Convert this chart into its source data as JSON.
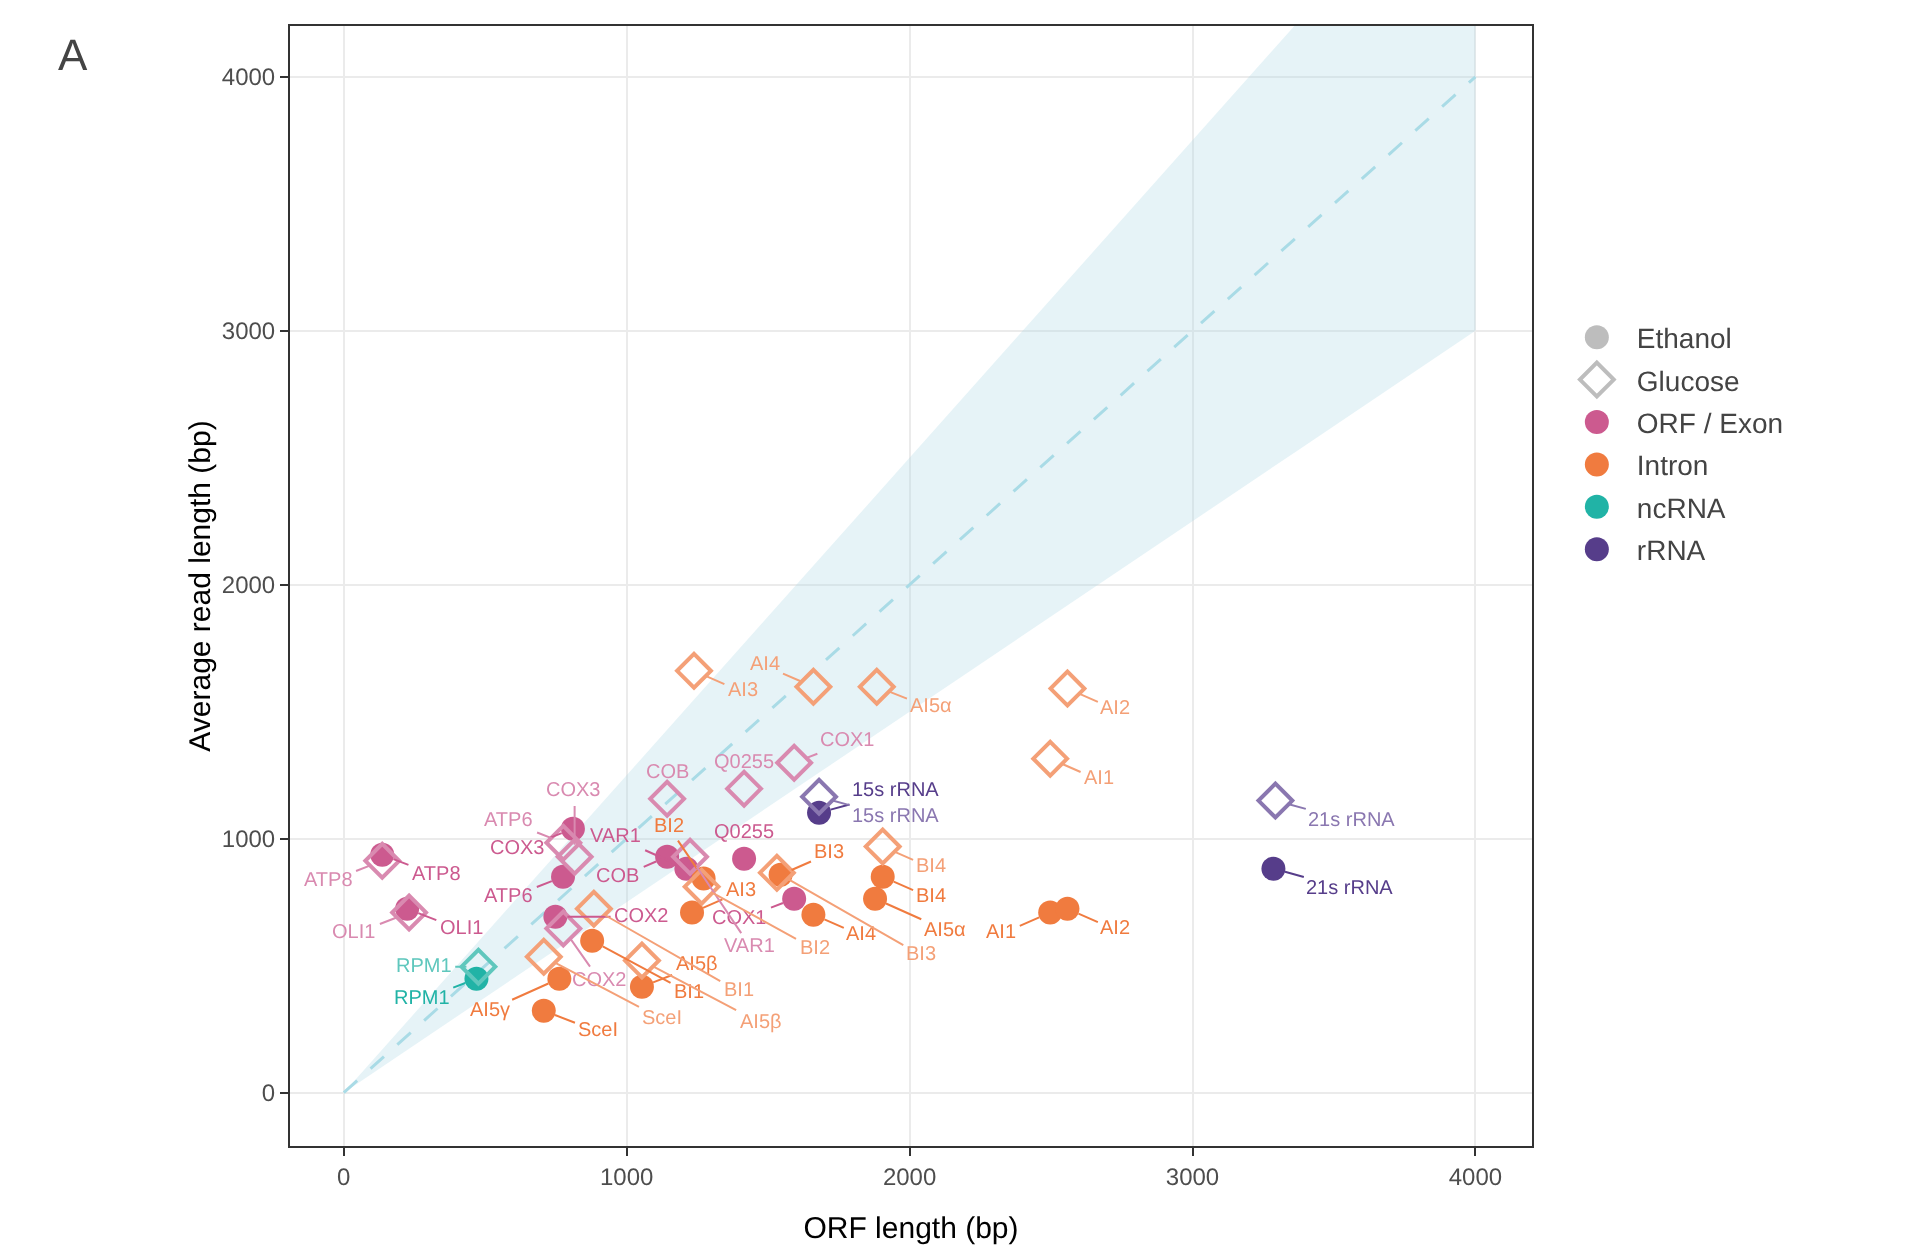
{
  "chart_data": {
    "type": "scatter",
    "title": "A",
    "xlabel": "ORF length (bp)",
    "ylabel": "Average read length (bp)",
    "xlim": [
      -190,
      4200
    ],
    "ylim": [
      -210,
      4200
    ],
    "xticks": [
      0,
      1000,
      2000,
      3000,
      4000
    ],
    "yticks": [
      0,
      1000,
      2000,
      3000,
      4000
    ],
    "grid": true,
    "legend": "right",
    "series": [
      {
        "type": "line",
        "color": "#a9dbe6",
        "line_style": "dashed",
        "marker": "none",
        "x": [
          0,
          3360,
          4000
        ],
        "values": [
          0,
          3360,
          4000
        ],
        "lower": [
          0,
          2520,
          3000
        ],
        "upper": [
          0,
          4200,
          4200
        ]
      },
      {
        "name": "Ethanol",
        "color": "#bdbdbd",
        "marker": "circle"
      },
      {
        "name": "Glucose",
        "color": "#bdbdbd",
        "marker": "diamond"
      },
      {
        "name": "ORF / Exon",
        "color": "#cc5a8f",
        "marker": "circle",
        "x": [
          136,
          224,
          810,
          775,
          748,
          1143,
          1211,
          1415,
          1592
        ],
        "values": [
          937,
          724,
          1039,
          850,
          693,
          929,
          882,
          921,
          764
        ]
      },
      {
        "name": "Intron",
        "color": "#f07b3f",
        "marker": "circle",
        "x": [
          707,
          762,
          878,
          1054,
          1231,
          1272,
          1544,
          1660,
          1905,
          1878,
          2497,
          2558
        ],
        "values": [
          323,
          449,
          598,
          417,
          709,
          843,
          858,
          701,
          850,
          764,
          709,
          724
        ]
      },
      {
        "name": "ncRNA",
        "color": "#21b3a6",
        "marker": "circle",
        "x": [
          469
        ],
        "values": [
          449
        ]
      },
      {
        "name": "rRNA",
        "color": "#563d8a",
        "marker": "circle",
        "x": [
          1680,
          3286
        ],
        "values": [
          1102,
          882
        ]
      },
      {
        "color": "#d98ab0",
        "marker": "diamond",
        "x": [
          136,
          231,
          776,
          816,
          776,
          1143,
          1224,
          1415,
          1592
        ],
        "values": [
          913,
          709,
          984,
          929,
          646,
          1157,
          929,
          1197,
          1299
        ]
      },
      {
        "color": "#f4a077",
        "marker": "diamond",
        "x": [
          707,
          884,
          1054,
          1238,
          1660,
          1884,
          1265,
          1531,
          1905,
          2497,
          2558
        ],
        "values": [
          535,
          724,
          520,
          1661,
          1598,
          1598,
          811,
          866,
          969,
          1315,
          1591
        ]
      },
      {
        "color": "#5fc7bd",
        "marker": "diamond",
        "x": [
          476
        ],
        "values": [
          496
        ]
      },
      {
        "color": "#8a77b0",
        "marker": "diamond",
        "x": [
          1680,
          3293
        ],
        "values": [
          1165,
          1150
        ]
      }
    ],
    "annotations": [
      {
        "text": "ATP8",
        "x": 136,
        "y": 937
      },
      {
        "text": "OLI1",
        "x": 224,
        "y": 724
      },
      {
        "text": "COX3",
        "x": 810,
        "y": 1039
      },
      {
        "text": "ATP6",
        "x": 775,
        "y": 850
      },
      {
        "text": "COX2",
        "x": 748,
        "y": 693
      },
      {
        "text": "COB",
        "x": 1143,
        "y": 929
      },
      {
        "text": "VAR1",
        "x": 1211,
        "y": 882
      },
      {
        "text": "Q0255",
        "x": 1415,
        "y": 921
      },
      {
        "text": "COX1",
        "x": 1592,
        "y": 764
      },
      {
        "text": "SceI",
        "x": 707,
        "y": 323
      },
      {
        "text": "AI5γ",
        "x": 762,
        "y": 449
      },
      {
        "text": "BI1",
        "x": 878,
        "y": 598
      },
      {
        "text": "AI5β",
        "x": 1054,
        "y": 417
      },
      {
        "text": "AI3",
        "x": 1231,
        "y": 709
      },
      {
        "text": "BI2",
        "x": 1272,
        "y": 843
      },
      {
        "text": "BI3",
        "x": 1544,
        "y": 858
      },
      {
        "text": "AI4",
        "x": 1660,
        "y": 701
      },
      {
        "text": "BI4",
        "x": 1905,
        "y": 850
      },
      {
        "text": "AI5α",
        "x": 1878,
        "y": 764
      },
      {
        "text": "AI1",
        "x": 2497,
        "y": 709
      },
      {
        "text": "AI2",
        "x": 2558,
        "y": 724
      },
      {
        "text": "RPM1",
        "x": 469,
        "y": 449
      },
      {
        "text": "15s rRNA",
        "x": 1680,
        "y": 1102
      },
      {
        "text": "21s rRNA",
        "x": 3286,
        "y": 882
      },
      {
        "text": "ATP8",
        "x": 136,
        "y": 913
      },
      {
        "text": "OLI1",
        "x": 231,
        "y": 709
      },
      {
        "text": "ATP6",
        "x": 776,
        "y": 984
      },
      {
        "text": "COX3",
        "x": 816,
        "y": 929
      },
      {
        "text": "COX2",
        "x": 776,
        "y": 646
      },
      {
        "text": "COB",
        "x": 1143,
        "y": 1157
      },
      {
        "text": "VAR1",
        "x": 1224,
        "y": 929
      },
      {
        "text": "Q0255",
        "x": 1415,
        "y": 1197
      },
      {
        "text": "COX1",
        "x": 1592,
        "y": 1299
      },
      {
        "text": "SceI",
        "x": 707,
        "y": 535
      },
      {
        "text": "BI1",
        "x": 884,
        "y": 724
      },
      {
        "text": "AI5β",
        "x": 1054,
        "y": 520
      },
      {
        "text": "AI3",
        "x": 1238,
        "y": 1661
      },
      {
        "text": "AI4",
        "x": 1660,
        "y": 1598
      },
      {
        "text": "AI5α",
        "x": 1884,
        "y": 1598
      },
      {
        "text": "BI2",
        "x": 1265,
        "y": 811
      },
      {
        "text": "BI3",
        "x": 1531,
        "y": 866
      },
      {
        "text": "BI4",
        "x": 1905,
        "y": 969
      },
      {
        "text": "AI1",
        "x": 2497,
        "y": 1315
      },
      {
        "text": "AI2",
        "x": 2558,
        "y": 1591
      },
      {
        "text": "RPM1",
        "x": 476,
        "y": 496
      },
      {
        "text": "15s rRNA",
        "x": 1680,
        "y": 1165
      },
      {
        "text": "21s rRNA",
        "x": 3293,
        "y": 1150
      }
    ]
  }
}
